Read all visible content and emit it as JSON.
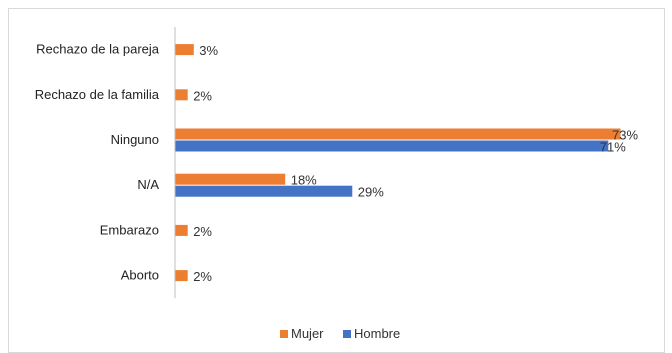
{
  "chart_data": {
    "type": "bar",
    "orientation": "horizontal",
    "categories": [
      "Rechazo de la pareja",
      "Rechazo de la familia",
      "Ninguno",
      "N/A",
      "Embarazo",
      "Aborto"
    ],
    "series": [
      {
        "name": "Mujer",
        "color": "#ED7D31",
        "values": [
          3,
          2,
          73,
          18,
          2,
          2
        ],
        "labels": [
          "3%",
          "2%",
          "73%",
          "18%",
          "2%",
          "2%"
        ]
      },
      {
        "name": "Hombre",
        "color": "#4472C4",
        "values": [
          null,
          null,
          71,
          29,
          null,
          null
        ],
        "labels": [
          "",
          "",
          "71%",
          "29%",
          "",
          ""
        ]
      }
    ],
    "xlim": [
      0,
      75
    ],
    "grid": false,
    "legend_position": "bottom",
    "title": "",
    "xlabel": "",
    "ylabel": ""
  }
}
